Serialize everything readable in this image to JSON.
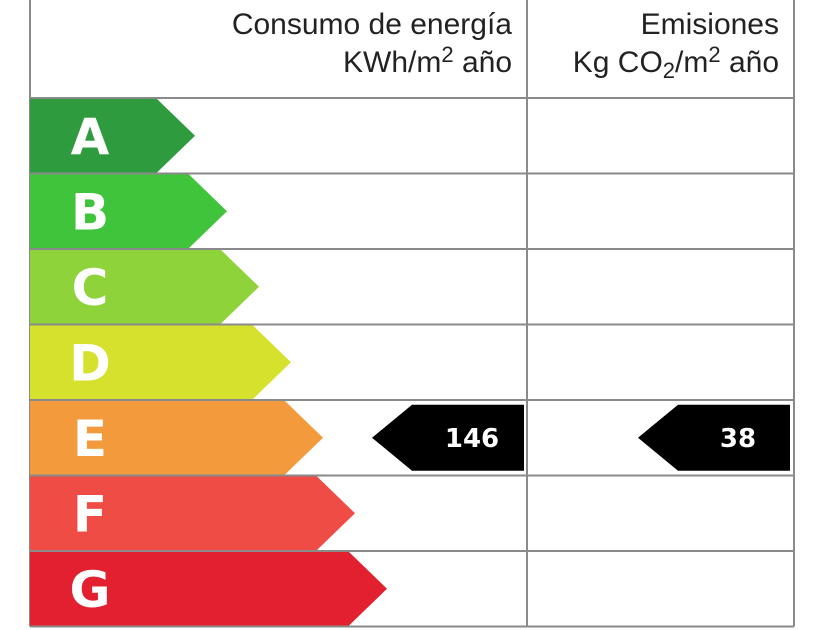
{
  "header": {
    "energy_title": "Consumo de energía",
    "energy_unit_pre": "KWh/m",
    "energy_unit_sup": "2",
    "energy_unit_post": " año",
    "emissions_title": "Emisiones",
    "emissions_unit_a": "Kg CO",
    "emissions_unit_sub": "2",
    "emissions_unit_b": "/m",
    "emissions_unit_sup": "2",
    "emissions_unit_post": " año"
  },
  "chart_data": {
    "type": "table",
    "classes": [
      "A",
      "B",
      "C",
      "D",
      "E",
      "F",
      "G"
    ],
    "class_colors": [
      "#2e9c3e",
      "#3fc43c",
      "#8fd33a",
      "#d6e12e",
      "#f39a3c",
      "#ef4c45",
      "#e2202f"
    ],
    "rating": {
      "class": "E",
      "energy_value": "146",
      "emissions_value": "38"
    }
  }
}
